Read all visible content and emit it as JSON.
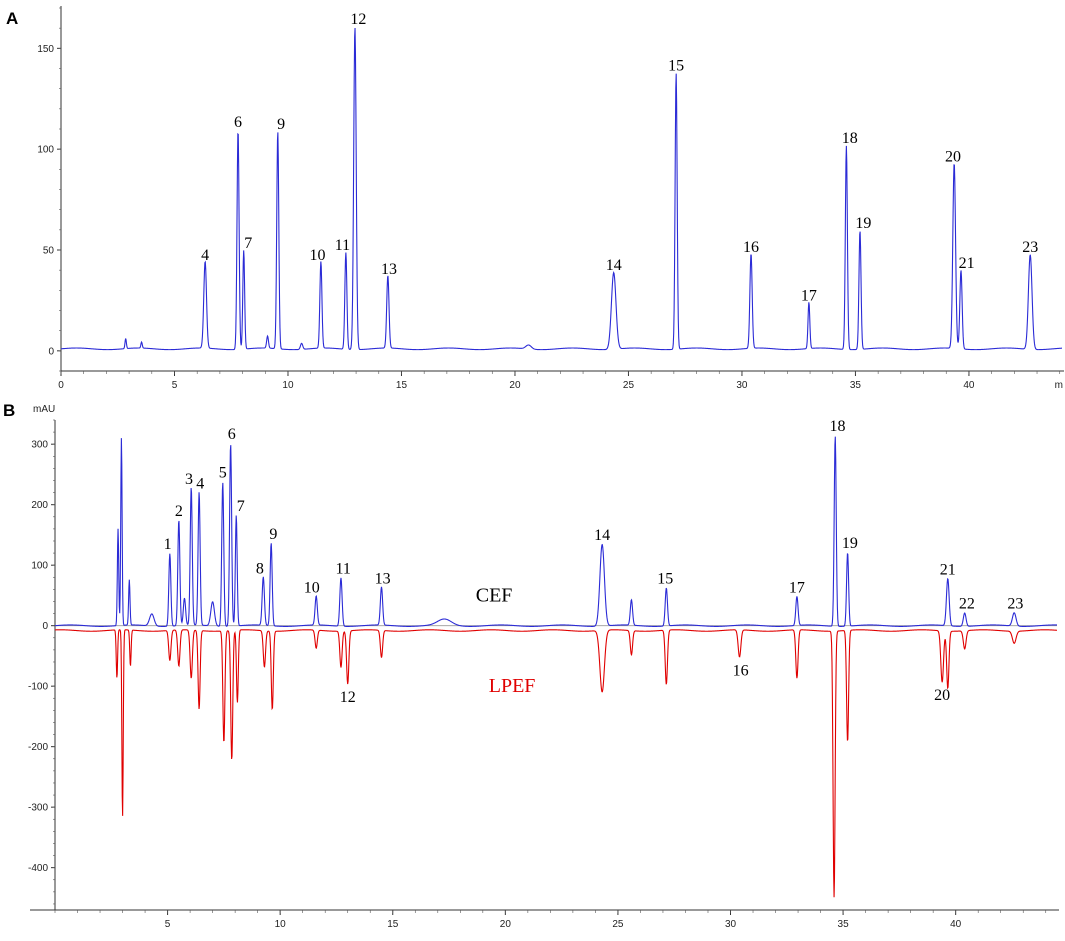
{
  "chart_data": [
    {
      "type": "line",
      "panel_label": "A",
      "title": "",
      "xlabel": "",
      "ylabel": "",
      "x_unit_tick_partial": "m",
      "xlim": [
        0,
        44.1
      ],
      "ylim": [
        -10,
        170
      ],
      "x_ticks": [
        0,
        5,
        10,
        15,
        20,
        25,
        30,
        35,
        40
      ],
      "y_ticks": [
        0,
        50,
        100,
        150
      ],
      "series": [
        {
          "color": "#2b2bd6",
          "direction": "up",
          "baseline": 1,
          "peaks": [
            {
              "x": 2.85,
              "y": 5,
              "w": 0.03
            },
            {
              "x": 3.55,
              "y": 3,
              "w": 0.03
            },
            {
              "x": 6.35,
              "y": 43,
              "w": 0.06
            },
            {
              "x": 7.8,
              "y": 109,
              "w": 0.045
            },
            {
              "x": 8.05,
              "y": 49,
              "w": 0.04
            },
            {
              "x": 9.1,
              "y": 6,
              "w": 0.04
            },
            {
              "x": 9.55,
              "y": 108,
              "w": 0.045
            },
            {
              "x": 10.6,
              "y": 3,
              "w": 0.05
            },
            {
              "x": 11.45,
              "y": 43,
              "w": 0.045
            },
            {
              "x": 12.55,
              "y": 48,
              "w": 0.045
            },
            {
              "x": 12.95,
              "y": 160,
              "w": 0.055
            },
            {
              "x": 14.4,
              "y": 36,
              "w": 0.05
            },
            {
              "x": 20.6,
              "y": 2,
              "w": 0.12
            },
            {
              "x": 24.35,
              "y": 38,
              "w": 0.1
            },
            {
              "x": 27.1,
              "y": 137,
              "w": 0.045
            },
            {
              "x": 30.4,
              "y": 47,
              "w": 0.05
            },
            {
              "x": 32.95,
              "y": 23,
              "w": 0.04
            },
            {
              "x": 34.6,
              "y": 101,
              "w": 0.045
            },
            {
              "x": 35.2,
              "y": 59,
              "w": 0.045
            },
            {
              "x": 39.35,
              "y": 92,
              "w": 0.06
            },
            {
              "x": 39.65,
              "y": 39,
              "w": 0.05
            },
            {
              "x": 42.7,
              "y": 47,
              "w": 0.08
            }
          ]
        }
      ],
      "peak_labels": [
        {
          "text": "4",
          "x": 6.35,
          "y": 43
        },
        {
          "text": "6",
          "x": 7.8,
          "y": 109
        },
        {
          "text": "7",
          "x": 8.25,
          "y": 49
        },
        {
          "text": "9",
          "x": 9.7,
          "y": 108
        },
        {
          "text": "10",
          "x": 11.3,
          "y": 43
        },
        {
          "text": "11",
          "x": 12.4,
          "y": 48
        },
        {
          "text": "12",
          "x": 13.1,
          "y": 160
        },
        {
          "text": "13",
          "x": 14.45,
          "y": 36
        },
        {
          "text": "14",
          "x": 24.35,
          "y": 38
        },
        {
          "text": "15",
          "x": 27.1,
          "y": 137
        },
        {
          "text": "16",
          "x": 30.4,
          "y": 47
        },
        {
          "text": "17",
          "x": 32.95,
          "y": 23
        },
        {
          "text": "18",
          "x": 34.75,
          "y": 101
        },
        {
          "text": "19",
          "x": 35.35,
          "y": 59
        },
        {
          "text": "20",
          "x": 39.3,
          "y": 92
        },
        {
          "text": "21",
          "x": 39.9,
          "y": 39
        },
        {
          "text": "23",
          "x": 42.7,
          "y": 47
        }
      ]
    },
    {
      "type": "line",
      "panel_label": "B",
      "title": "",
      "xlabel": "",
      "ylabel": "mAU",
      "xlim": [
        0,
        44.5
      ],
      "ylim": [
        -470,
        340
      ],
      "x_ticks": [
        5,
        10,
        15,
        20,
        25,
        30,
        35,
        40
      ],
      "y_ticks": [
        300,
        200,
        100,
        0,
        -100,
        -200,
        -300,
        -400
      ],
      "series": [
        {
          "name": "CEF",
          "color": "#2b2bd6",
          "direction": "up",
          "baseline": 0,
          "peaks": [
            {
              "x": 2.8,
              "y": 160,
              "w": 0.03
            },
            {
              "x": 2.95,
              "y": 310,
              "w": 0.03
            },
            {
              "x": 3.3,
              "y": 75,
              "w": 0.03
            },
            {
              "x": 4.3,
              "y": 20,
              "w": 0.1
            },
            {
              "x": 5.1,
              "y": 120,
              "w": 0.045
            },
            {
              "x": 5.5,
              "y": 175,
              "w": 0.045
            },
            {
              "x": 5.75,
              "y": 45,
              "w": 0.05
            },
            {
              "x": 6.05,
              "y": 228,
              "w": 0.045
            },
            {
              "x": 6.4,
              "y": 220,
              "w": 0.045
            },
            {
              "x": 7.0,
              "y": 40,
              "w": 0.08
            },
            {
              "x": 7.45,
              "y": 238,
              "w": 0.045
            },
            {
              "x": 7.8,
              "y": 302,
              "w": 0.045
            },
            {
              "x": 8.05,
              "y": 183,
              "w": 0.04
            },
            {
              "x": 9.25,
              "y": 80,
              "w": 0.05
            },
            {
              "x": 9.6,
              "y": 137,
              "w": 0.045
            },
            {
              "x": 11.6,
              "y": 48,
              "w": 0.05
            },
            {
              "x": 12.7,
              "y": 80,
              "w": 0.05
            },
            {
              "x": 14.5,
              "y": 63,
              "w": 0.05
            },
            {
              "x": 17.3,
              "y": 10,
              "w": 0.3
            },
            {
              "x": 24.3,
              "y": 135,
              "w": 0.1
            },
            {
              "x": 25.6,
              "y": 42,
              "w": 0.05
            },
            {
              "x": 27.15,
              "y": 63,
              "w": 0.05
            },
            {
              "x": 32.95,
              "y": 48,
              "w": 0.05
            },
            {
              "x": 34.65,
              "y": 315,
              "w": 0.045
            },
            {
              "x": 35.2,
              "y": 122,
              "w": 0.045
            },
            {
              "x": 39.65,
              "y": 78,
              "w": 0.06
            },
            {
              "x": 40.4,
              "y": 22,
              "w": 0.06
            },
            {
              "x": 42.6,
              "y": 22,
              "w": 0.08
            }
          ]
        },
        {
          "name": "LPEF",
          "color": "#e00000",
          "direction": "down",
          "baseline": -8,
          "peaks": [
            {
              "x": 2.75,
              "y": 80,
              "w": 0.03
            },
            {
              "x": 3.0,
              "y": 310,
              "w": 0.03
            },
            {
              "x": 3.35,
              "y": 60,
              "w": 0.03
            },
            {
              "x": 5.1,
              "y": 50,
              "w": 0.05
            },
            {
              "x": 5.5,
              "y": 60,
              "w": 0.05
            },
            {
              "x": 6.05,
              "y": 80,
              "w": 0.05
            },
            {
              "x": 6.4,
              "y": 130,
              "w": 0.045
            },
            {
              "x": 7.5,
              "y": 185,
              "w": 0.045
            },
            {
              "x": 7.85,
              "y": 215,
              "w": 0.045
            },
            {
              "x": 8.1,
              "y": 120,
              "w": 0.04
            },
            {
              "x": 9.3,
              "y": 60,
              "w": 0.05
            },
            {
              "x": 9.65,
              "y": 130,
              "w": 0.045
            },
            {
              "x": 11.6,
              "y": 30,
              "w": 0.05
            },
            {
              "x": 12.7,
              "y": 60,
              "w": 0.05
            },
            {
              "x": 13.0,
              "y": 88,
              "w": 0.05
            },
            {
              "x": 14.5,
              "y": 45,
              "w": 0.05
            },
            {
              "x": 24.3,
              "y": 102,
              "w": 0.1
            },
            {
              "x": 25.6,
              "y": 40,
              "w": 0.05
            },
            {
              "x": 27.15,
              "y": 90,
              "w": 0.05
            },
            {
              "x": 30.4,
              "y": 45,
              "w": 0.06
            },
            {
              "x": 32.95,
              "y": 80,
              "w": 0.05
            },
            {
              "x": 34.6,
              "y": 440,
              "w": 0.045
            },
            {
              "x": 35.2,
              "y": 185,
              "w": 0.045
            },
            {
              "x": 39.4,
              "y": 85,
              "w": 0.06
            },
            {
              "x": 39.65,
              "y": 95,
              "w": 0.05
            },
            {
              "x": 40.4,
              "y": 30,
              "w": 0.06
            },
            {
              "x": 42.6,
              "y": 20,
              "w": 0.08
            }
          ]
        }
      ],
      "series_labels": [
        {
          "text": "CEF",
          "x": 19.5,
          "y": 40,
          "color": "#000000"
        },
        {
          "text": "LPEF",
          "x": 20.3,
          "y": -110,
          "color": "#e00000"
        }
      ],
      "peak_labels": [
        {
          "text": "1",
          "x": 5.0,
          "y": 120
        },
        {
          "text": "2",
          "x": 5.5,
          "y": 175
        },
        {
          "text": "3",
          "x": 5.95,
          "y": 228
        },
        {
          "text": "4",
          "x": 6.45,
          "y": 220
        },
        {
          "text": "5",
          "x": 7.45,
          "y": 238
        },
        {
          "text": "6",
          "x": 7.85,
          "y": 302
        },
        {
          "text": "7",
          "x": 8.25,
          "y": 183
        },
        {
          "text": "8",
          "x": 9.1,
          "y": 80
        },
        {
          "text": "9",
          "x": 9.7,
          "y": 137
        },
        {
          "text": "10",
          "x": 11.4,
          "y": 48
        },
        {
          "text": "11",
          "x": 12.8,
          "y": 80
        },
        {
          "text": "13",
          "x": 14.55,
          "y": 63
        },
        {
          "text": "14",
          "x": 24.3,
          "y": 135
        },
        {
          "text": "15",
          "x": 27.1,
          "y": 63
        },
        {
          "text": "17",
          "x": 32.95,
          "y": 48
        },
        {
          "text": "18",
          "x": 34.75,
          "y": 315
        },
        {
          "text": "19",
          "x": 35.3,
          "y": 122
        },
        {
          "text": "21",
          "x": 39.65,
          "y": 78
        },
        {
          "text": "22",
          "x": 40.5,
          "y": 22
        },
        {
          "text": "23",
          "x": 42.65,
          "y": 22
        },
        {
          "text": "12",
          "x": 13.0,
          "y": -96,
          "below": true
        },
        {
          "text": "16",
          "x": 30.45,
          "y": -53,
          "below": true
        },
        {
          "text": "20",
          "x": 39.4,
          "y": -93,
          "below": true
        }
      ]
    }
  ]
}
